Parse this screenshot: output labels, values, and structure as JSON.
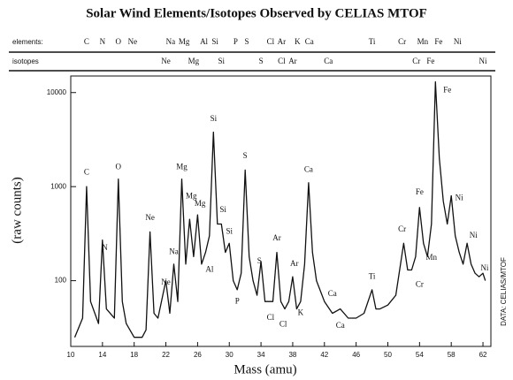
{
  "chart_data": {
    "type": "line",
    "title": "Solar Wind Elements/Isotopes Observed by CELIAS MTOF",
    "x_label": "Mass  (amu)",
    "y_label": "(raw counts)",
    "side_label": "DATA: CELIAS/MTOF",
    "log_y": true,
    "color": "#111111",
    "xlim": [
      10,
      63
    ],
    "ylim": [
      20,
      15000
    ],
    "xticks": [
      10,
      14,
      18,
      22,
      26,
      30,
      34,
      38,
      42,
      46,
      50,
      54,
      58,
      62
    ],
    "yticks": [
      100,
      1000,
      10000
    ],
    "x": [
      10.5,
      11.5,
      12,
      12.5,
      13.5,
      14,
      14.5,
      15.5,
      16,
      16.5,
      17,
      18,
      19,
      19.5,
      20,
      20.5,
      21,
      22,
      22.5,
      23,
      23.5,
      24,
      24.5,
      25,
      25.5,
      26,
      26.5,
      27,
      27.5,
      28,
      28.5,
      29,
      29.5,
      30,
      30.5,
      31,
      31.5,
      32,
      32.5,
      33,
      33.5,
      34,
      34.5,
      35,
      35.5,
      36,
      36.5,
      37,
      37.5,
      38,
      38.5,
      39,
      39.5,
      40,
      40.5,
      41,
      42,
      43,
      44,
      45,
      46,
      47,
      48,
      48.5,
      49,
      50,
      51,
      52,
      52.5,
      53,
      53.5,
      54,
      54.5,
      55,
      55.5,
      56,
      56.5,
      57,
      57.5,
      58,
      58.5,
      59,
      59.5,
      60,
      60.5,
      61,
      61.5,
      62,
      62.3
    ],
    "values": [
      25,
      40,
      1000,
      60,
      35,
      270,
      50,
      40,
      1200,
      60,
      35,
      25,
      25,
      30,
      330,
      45,
      40,
      100,
      45,
      150,
      60,
      1200,
      150,
      450,
      180,
      500,
      150,
      200,
      300,
      3800,
      400,
      400,
      200,
      250,
      100,
      80,
      120,
      1500,
      180,
      100,
      70,
      160,
      60,
      60,
      60,
      200,
      60,
      50,
      60,
      110,
      50,
      60,
      150,
      1100,
      200,
      100,
      60,
      45,
      50,
      40,
      40,
      45,
      80,
      50,
      50,
      55,
      70,
      250,
      130,
      130,
      180,
      600,
      250,
      180,
      400,
      13000,
      2000,
      700,
      400,
      800,
      300,
      200,
      150,
      250,
      150,
      120,
      110,
      120,
      100
    ],
    "annotations": [
      {
        "text": "C",
        "x": 12,
        "y": 1400
      },
      {
        "text": "N",
        "x": 14.3,
        "y": 220
      },
      {
        "text": "O",
        "x": 16,
        "y": 1600
      },
      {
        "text": "Ne",
        "x": 20,
        "y": 460
      },
      {
        "text": "Ne",
        "x": 22,
        "y": 95
      },
      {
        "text": "Na",
        "x": 23,
        "y": 200
      },
      {
        "text": "Mg",
        "x": 24,
        "y": 1600
      },
      {
        "text": "Mg",
        "x": 25.2,
        "y": 780
      },
      {
        "text": "Mg",
        "x": 26.3,
        "y": 650
      },
      {
        "text": "Al",
        "x": 27.5,
        "y": 130
      },
      {
        "text": "Si",
        "x": 28,
        "y": 5200
      },
      {
        "text": "Si",
        "x": 29.2,
        "y": 560
      },
      {
        "text": "Si",
        "x": 30,
        "y": 330
      },
      {
        "text": "P",
        "x": 31,
        "y": 60
      },
      {
        "text": "S",
        "x": 32,
        "y": 2100
      },
      {
        "text": "S",
        "x": 33.8,
        "y": 160
      },
      {
        "text": "Cl",
        "x": 35.2,
        "y": 40
      },
      {
        "text": "Ar",
        "x": 36,
        "y": 280
      },
      {
        "text": "Cl",
        "x": 36.8,
        "y": 34
      },
      {
        "text": "Ar",
        "x": 38.2,
        "y": 150
      },
      {
        "text": "K",
        "x": 39,
        "y": 45
      },
      {
        "text": "Ca",
        "x": 40,
        "y": 1500
      },
      {
        "text": "Ca",
        "x": 43,
        "y": 72
      },
      {
        "text": "Ca",
        "x": 44,
        "y": 33
      },
      {
        "text": "Ti",
        "x": 48,
        "y": 110
      },
      {
        "text": "Cr",
        "x": 51.8,
        "y": 350
      },
      {
        "text": "Cr",
        "x": 54,
        "y": 90
      },
      {
        "text": "Fe",
        "x": 54,
        "y": 860
      },
      {
        "text": "Mn",
        "x": 55.5,
        "y": 175
      },
      {
        "text": "Fe",
        "x": 57.5,
        "y": 10500
      },
      {
        "text": "Ni",
        "x": 59,
        "y": 750
      },
      {
        "text": "Ni",
        "x": 60.8,
        "y": 300
      },
      {
        "text": "Ni",
        "x": 62.2,
        "y": 135
      }
    ],
    "element_row": {
      "label": "elements:",
      "items": [
        {
          "text": "C",
          "x": 12
        },
        {
          "text": "N",
          "x": 14
        },
        {
          "text": "O",
          "x": 16
        },
        {
          "text": "Ne",
          "x": 17.8
        },
        {
          "text": "Na",
          "x": 22.6
        },
        {
          "text": "Mg",
          "x": 24.3
        },
        {
          "text": "Al",
          "x": 26.8
        },
        {
          "text": "Si",
          "x": 28.2
        },
        {
          "text": "P",
          "x": 30.8
        },
        {
          "text": "S",
          "x": 32.2
        },
        {
          "text": "Cl",
          "x": 35.2
        },
        {
          "text": "Ar",
          "x": 36.6
        },
        {
          "text": "K",
          "x": 38.6
        },
        {
          "text": "Ca",
          "x": 40.1
        },
        {
          "text": "Ti",
          "x": 48
        },
        {
          "text": "Cr",
          "x": 51.8
        },
        {
          "text": "Mn",
          "x": 54.4
        },
        {
          "text": "Fe",
          "x": 56.4
        },
        {
          "text": "Ni",
          "x": 58.8
        }
      ]
    },
    "isotope_row": {
      "label": "isotopes",
      "items": [
        {
          "text": "Ne",
          "x": 22
        },
        {
          "text": "Mg",
          "x": 25.5
        },
        {
          "text": "Si",
          "x": 29
        },
        {
          "text": "S",
          "x": 34
        },
        {
          "text": "Cl",
          "x": 36.6
        },
        {
          "text": "Ar",
          "x": 38
        },
        {
          "text": "Ca",
          "x": 42.5
        },
        {
          "text": "Cr",
          "x": 53.6
        },
        {
          "text": "Fe",
          "x": 55.4
        },
        {
          "text": "Ni",
          "x": 62
        }
      ]
    }
  }
}
